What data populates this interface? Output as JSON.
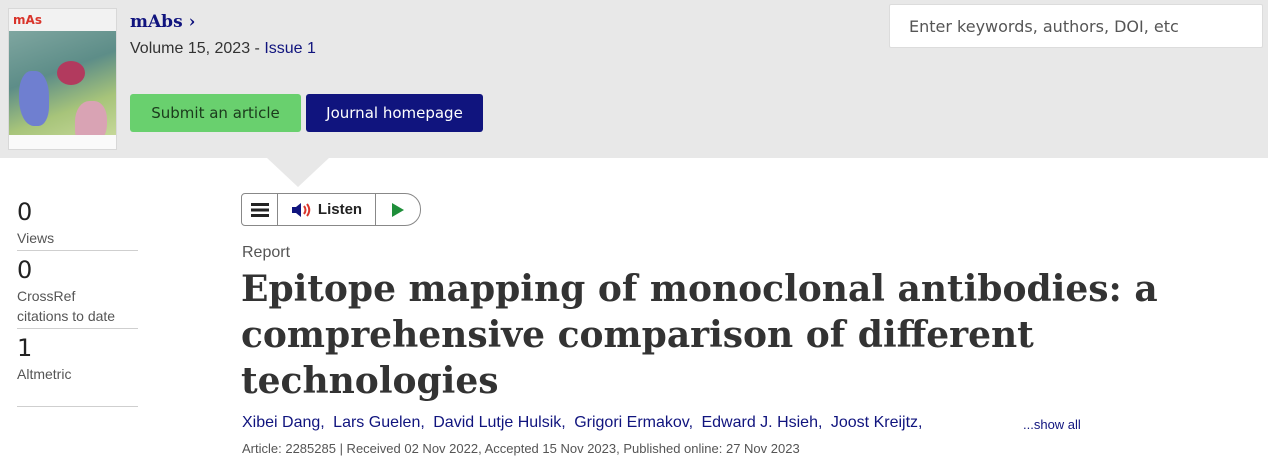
{
  "journal": {
    "name": "mAbs",
    "name_arrow": "›",
    "cover_logo_a": "m",
    "cover_logo_b": "A",
    "cover_logo_c": "s",
    "volume_text": "Volume 15, 2023 - ",
    "issue_link": "Issue 1"
  },
  "actions": {
    "submit_label": "Submit an article",
    "homepage_label": "Journal homepage"
  },
  "search": {
    "placeholder": "Enter keywords, authors, DOI, etc"
  },
  "metrics": [
    {
      "value": "0",
      "label": "Views"
    },
    {
      "value": "0",
      "label_line1": "CrossRef",
      "label_line2": "citations to date"
    },
    {
      "value": "1",
      "label": "Altmetric"
    }
  ],
  "toolbar": {
    "listen_label": "Listen",
    "icons": [
      "menu-icon",
      "speaker-icon",
      "play-icon"
    ]
  },
  "article": {
    "type": "Report",
    "title": "Epitope mapping of monoclonal antibodies: a comprehensive comparison of different technologies",
    "authors": [
      "Xibei Dang,",
      "Lars Guelen,",
      "David Lutje Hulsik,",
      "Grigori Ermakov,",
      "Edward J. Hsieh,",
      "Joost Kreijtz,"
    ],
    "show_all": "...show all",
    "info": "Article: 2285285 | Received 02 Nov 2022, Accepted 15 Nov 2023, Published online: 27 Nov 2023"
  },
  "colors": {
    "brand_navy": "#10147e",
    "submit_green": "#69d06e",
    "band_gray": "#e8e8e8"
  }
}
